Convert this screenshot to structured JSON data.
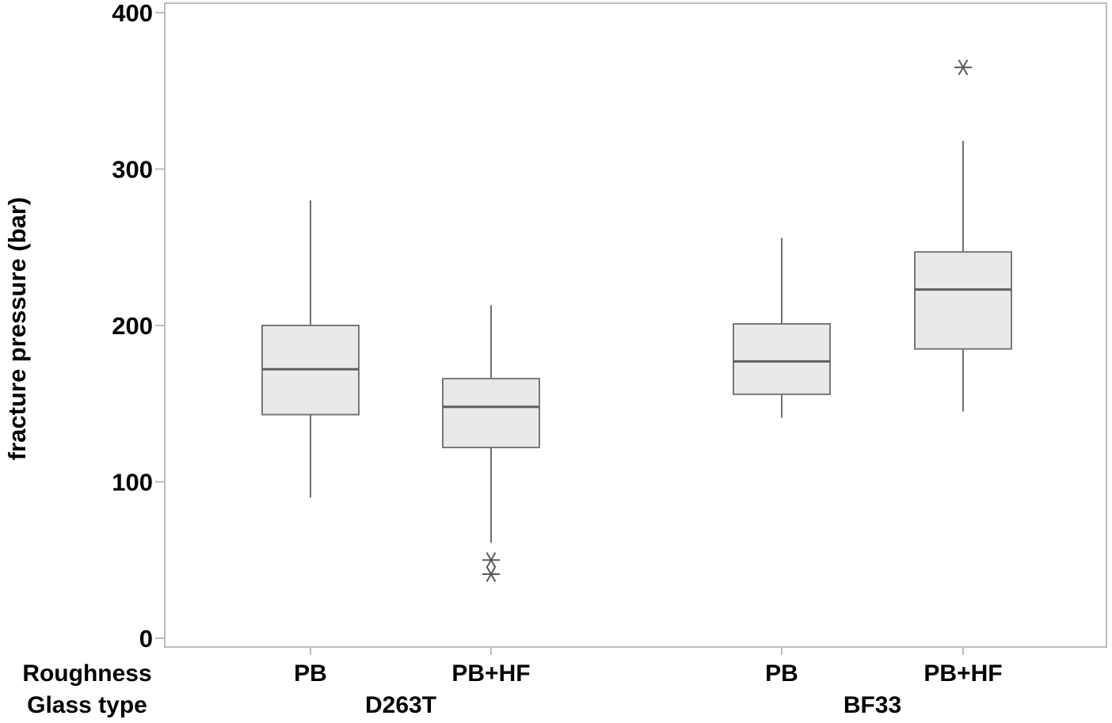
{
  "chart_data": {
    "type": "boxplot",
    "title": "",
    "ylabel": "fracture pressure (bar)",
    "ylim": [
      0,
      400
    ],
    "yticks": [
      0,
      100,
      200,
      300,
      400
    ],
    "grid": false,
    "legend": false,
    "axis_row_labels": {
      "roughness": "Roughness",
      "glass_type": "Glass type"
    },
    "groups": [
      {
        "glass_type": "D263T",
        "boxes": [
          {
            "roughness": "PB",
            "whisker_low": 90,
            "q1": 143,
            "median": 172,
            "q3": 200,
            "whisker_high": 280,
            "outliers": []
          },
          {
            "roughness": "PB+HF",
            "whisker_low": 61,
            "q1": 122,
            "median": 148,
            "q3": 166,
            "whisker_high": 213,
            "outliers": [
              50,
              41
            ]
          }
        ]
      },
      {
        "glass_type": "BF33",
        "boxes": [
          {
            "roughness": "PB",
            "whisker_low": 141,
            "q1": 156,
            "median": 177,
            "q3": 201,
            "whisker_high": 256,
            "outliers": []
          },
          {
            "roughness": "PB+HF",
            "whisker_low": 145,
            "q1": 185,
            "median": 223,
            "q3": 247,
            "whisker_high": 318,
            "outliers": [
              365
            ]
          }
        ]
      }
    ],
    "colors": {
      "box_fill": "#e9e9e9",
      "box_border": "#787878",
      "median": "#606060",
      "whisker": "#6e6e6e",
      "frame": "#bcbcbc",
      "outlier": "#5a5a5a",
      "text": "#000000",
      "background": "#ffffff"
    }
  }
}
